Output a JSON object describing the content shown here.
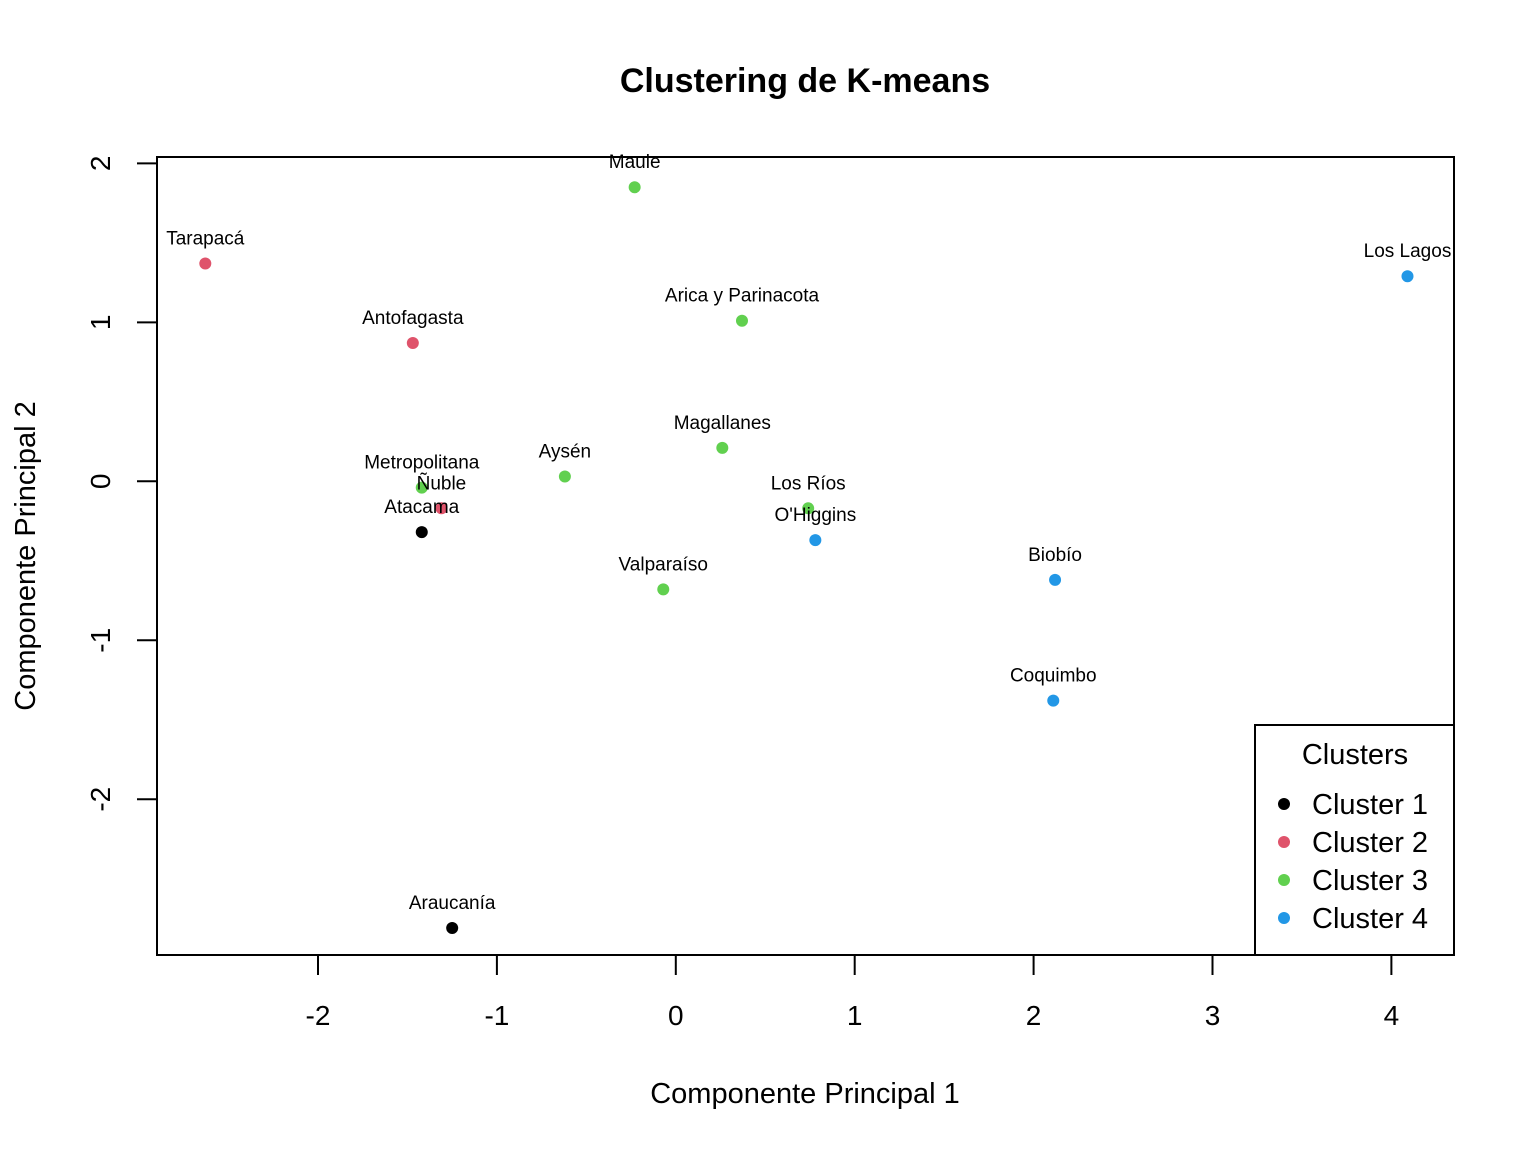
{
  "chart_data": {
    "type": "scatter",
    "title": "Clustering de K-means",
    "xlabel": "Componente Principal 1",
    "ylabel": "Componente Principal 2",
    "xlim": [
      -2.9,
      4.35
    ],
    "ylim": [
      -2.98,
      2.04
    ],
    "xticks": [
      -2,
      -1,
      0,
      1,
      2,
      3,
      4
    ],
    "yticks": [
      -2,
      -1,
      0,
      1,
      2
    ],
    "xtick_labels": [
      "-2",
      "-1",
      "0",
      "1",
      "2",
      "3",
      "4"
    ],
    "ytick_labels": [
      "-2",
      "-1",
      "0",
      "1",
      "2"
    ],
    "grid": false,
    "legend": {
      "title": "Clusters",
      "placement": "bottom-right",
      "entries": [
        {
          "label": "Cluster 1",
          "color": "#000000"
        },
        {
          "label": "Cluster 2",
          "color": "#DF536B"
        },
        {
          "label": "Cluster 3",
          "color": "#61D04F"
        },
        {
          "label": "Cluster 4",
          "color": "#2297E6"
        }
      ]
    },
    "points": [
      {
        "label": "Maule",
        "x": -0.23,
        "y": 1.85,
        "cluster": 3
      },
      {
        "label": "Tarapacá",
        "x": -2.63,
        "y": 1.37,
        "cluster": 2
      },
      {
        "label": "Los Lagos",
        "x": 4.09,
        "y": 1.29,
        "cluster": 4
      },
      {
        "label": "Antofagasta",
        "x": -1.47,
        "y": 0.87,
        "cluster": 2
      },
      {
        "label": "Arica y Parinacota",
        "x": 0.37,
        "y": 1.01,
        "cluster": 3
      },
      {
        "label": "Magallanes",
        "x": 0.26,
        "y": 0.21,
        "cluster": 3
      },
      {
        "label": "Aysén",
        "x": -0.62,
        "y": 0.03,
        "cluster": 3
      },
      {
        "label": "Metropolitana",
        "x": -1.42,
        "y": -0.04,
        "cluster": 3
      },
      {
        "label": "Ñuble",
        "x": -1.31,
        "y": -0.17,
        "cluster": 2
      },
      {
        "label": "Atacama",
        "x": -1.42,
        "y": -0.32,
        "cluster": 1
      },
      {
        "label": "Los Ríos",
        "x": 0.74,
        "y": -0.17,
        "cluster": 3
      },
      {
        "label": "O'Higgins",
        "x": 0.78,
        "y": -0.37,
        "cluster": 4
      },
      {
        "label": "Valparaíso",
        "x": -0.07,
        "y": -0.68,
        "cluster": 3
      },
      {
        "label": "Biobío",
        "x": 2.12,
        "y": -0.62,
        "cluster": 4
      },
      {
        "label": "Coquimbo",
        "x": 2.11,
        "y": -1.38,
        "cluster": 4
      },
      {
        "label": "Araucanía",
        "x": -1.25,
        "y": -2.81,
        "cluster": 1
      }
    ]
  }
}
